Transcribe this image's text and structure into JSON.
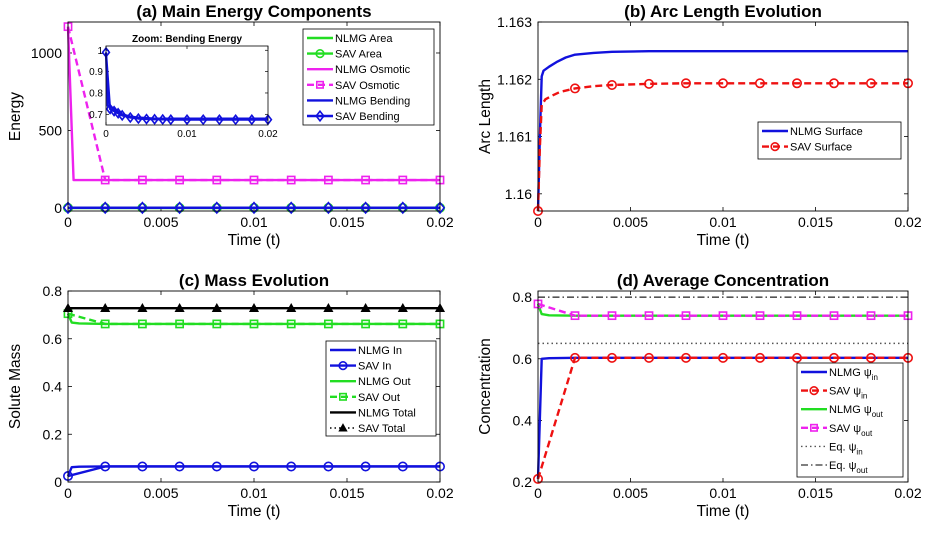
{
  "chart_data": [
    {
      "id": "a",
      "type": "line",
      "title": "(a) Main Energy Components",
      "xlabel": "Time (t)",
      "ylabel": "Energy",
      "xlim": [
        0,
        0.02
      ],
      "ylim": [
        -20,
        1200
      ],
      "xticks": [
        0,
        0.005,
        0.01,
        0.015,
        0.02
      ],
      "xtick_labels": [
        "0",
        "0.005",
        "0.01",
        "0.015",
        "0.02"
      ],
      "yticks": [
        0,
        500,
        1000
      ],
      "ytick_labels": [
        "0",
        "500",
        "1000"
      ],
      "legend_position": "top-right",
      "series": [
        {
          "name": "NLMG Area",
          "color": "#22dd22",
          "style": "solid",
          "x": [
            0,
            0.0002,
            0.02
          ],
          "y": [
            0,
            0,
            0
          ]
        },
        {
          "name": "SAV Area",
          "color": "#22dd22",
          "style": "solid",
          "marker": "circle",
          "x": [
            0,
            0.002,
            0.004,
            0.006,
            0.008,
            0.01,
            0.012,
            0.014,
            0.016,
            0.018,
            0.02
          ],
          "y": [
            0,
            0,
            0,
            0,
            0,
            0,
            0,
            0,
            0,
            0,
            0
          ]
        },
        {
          "name": "NLMG Osmotic",
          "color": "#ee22ee",
          "style": "solid",
          "x": [
            0,
            0.0003,
            0.02
          ],
          "y": [
            1170,
            180,
            180
          ]
        },
        {
          "name": "SAV Osmotic",
          "color": "#ee22ee",
          "style": "dashed",
          "marker": "square",
          "x": [
            0,
            0.002,
            0.004,
            0.006,
            0.008,
            0.01,
            0.012,
            0.014,
            0.016,
            0.018,
            0.02
          ],
          "y": [
            1170,
            180,
            180,
            180,
            180,
            180,
            180,
            180,
            180,
            180,
            180
          ]
        },
        {
          "name": "NLMG Bending",
          "color": "#1111dd",
          "style": "solid",
          "x": [
            0,
            0.02
          ],
          "y": [
            0.7,
            0.7
          ]
        },
        {
          "name": "SAV Bending",
          "color": "#1111dd",
          "style": "solid",
          "marker": "diamond",
          "x": [
            0,
            0.002,
            0.004,
            0.006,
            0.008,
            0.01,
            0.012,
            0.014,
            0.016,
            0.018,
            0.02
          ],
          "y": [
            0.7,
            0.7,
            0.7,
            0.7,
            0.7,
            0.7,
            0.7,
            0.7,
            0.7,
            0.7,
            0.7
          ]
        }
      ],
      "inset": {
        "title": "Zoom: Bending Energy",
        "xlim": [
          0,
          0.02
        ],
        "ylim": [
          0.65,
          1.02
        ],
        "xticks": [
          0,
          0.01,
          0.02
        ],
        "xtick_labels": [
          "0",
          "0.01",
          "0.02"
        ],
        "yticks": [
          0.7,
          0.8,
          0.9,
          1
        ],
        "ytick_labels": [
          "0.7",
          "0.8",
          "0.9",
          "1"
        ],
        "series": [
          {
            "name": "NLMG Bending",
            "color": "#1111dd",
            "x": [
              0,
              0.0002,
              0.0006,
              0.0012,
              0.002,
              0.003,
              0.004,
              0.006,
              0.01,
              0.02
            ],
            "y": [
              0.99,
              0.74,
              0.735,
              0.72,
              0.7,
              0.69,
              0.685,
              0.68,
              0.68,
              0.68
            ]
          },
          {
            "name": "SAV Bending",
            "color": "#1111dd",
            "marker": "diamond",
            "x": [
              0,
              0.0005,
              0.001,
              0.0015,
              0.002,
              0.003,
              0.004,
              0.005,
              0.006,
              0.007,
              0.008,
              0.01,
              0.012,
              0.014,
              0.016,
              0.018,
              0.02
            ],
            "y": [
              0.99,
              0.725,
              0.715,
              0.705,
              0.695,
              0.685,
              0.68,
              0.678,
              0.677,
              0.676,
              0.675,
              0.675,
              0.675,
              0.675,
              0.675,
              0.675,
              0.675
            ]
          }
        ]
      }
    },
    {
      "id": "b",
      "type": "line",
      "title": "(b) Arc Length Evolution",
      "xlabel": "Time (t)",
      "ylabel": "Arc Length",
      "xlim": [
        0,
        0.02
      ],
      "ylim": [
        1.1597,
        1.163
      ],
      "xticks": [
        0,
        0.005,
        0.01,
        0.015,
        0.02
      ],
      "xtick_labels": [
        "0",
        "0.005",
        "0.01",
        "0.015",
        "0.02"
      ],
      "yticks": [
        1.16,
        1.161,
        1.162,
        1.163
      ],
      "ytick_labels": [
        "1.16",
        "1.161",
        "1.162",
        "1.163"
      ],
      "legend_position": "center-right",
      "series": [
        {
          "name": "NLMG Surface",
          "color": "#1111dd",
          "style": "solid",
          "x": [
            0,
            0.0001,
            0.0002,
            0.0003,
            0.0006,
            0.001,
            0.0015,
            0.002,
            0.003,
            0.004,
            0.006,
            0.01,
            0.02
          ],
          "y": [
            1.1597,
            1.161,
            1.16205,
            1.16215,
            1.16222,
            1.1623,
            1.16238,
            1.16243,
            1.16246,
            1.16248,
            1.16249,
            1.16249,
            1.16249
          ]
        },
        {
          "name": "SAV Surface",
          "color": "#ee1111",
          "style": "dashed",
          "marker": "circle",
          "x": [
            0,
            0.0001,
            0.0002,
            0.0004,
            0.0008,
            0.0012,
            0.002,
            0.003,
            0.004,
            0.006,
            0.008,
            0.01,
            0.012,
            0.014,
            0.016,
            0.018,
            0.02
          ],
          "y": [
            1.1597,
            1.1608,
            1.16155,
            1.16165,
            1.16172,
            1.16178,
            1.16184,
            1.16188,
            1.1619,
            1.16192,
            1.16193,
            1.16193,
            1.16193,
            1.16193,
            1.16193,
            1.16193,
            1.16193
          ],
          "marker_x": [
            0,
            0.002,
            0.004,
            0.006,
            0.008,
            0.01,
            0.012,
            0.014,
            0.016,
            0.018,
            0.02
          ],
          "marker_y": [
            1.1597,
            1.16184,
            1.1619,
            1.16192,
            1.16193,
            1.16193,
            1.16193,
            1.16193,
            1.16193,
            1.16193,
            1.16193
          ]
        }
      ]
    },
    {
      "id": "c",
      "type": "line",
      "title": "(c) Mass Evolution",
      "xlabel": "Time (t)",
      "ylabel": "Solute Mass",
      "xlim": [
        0,
        0.02
      ],
      "ylim": [
        0,
        0.8
      ],
      "xticks": [
        0,
        0.005,
        0.01,
        0.015,
        0.02
      ],
      "xtick_labels": [
        "0",
        "0.005",
        "0.01",
        "0.015",
        "0.02"
      ],
      "yticks": [
        0,
        0.2,
        0.4,
        0.6,
        0.8
      ],
      "ytick_labels": [
        "0",
        "0.2",
        "0.4",
        "0.6",
        "0.8"
      ],
      "legend_position": "bottom-right",
      "series": [
        {
          "name": "NLMG In",
          "color": "#1111dd",
          "style": "solid",
          "x": [
            0,
            0.0002,
            0.0006,
            0.002,
            0.02
          ],
          "y": [
            0.025,
            0.062,
            0.064,
            0.065,
            0.065
          ]
        },
        {
          "name": "SAV In",
          "color": "#1111dd",
          "style": "solid",
          "marker": "circle",
          "x": [
            0,
            0.002,
            0.004,
            0.006,
            0.008,
            0.01,
            0.012,
            0.014,
            0.016,
            0.018,
            0.02
          ],
          "y": [
            0.025,
            0.065,
            0.065,
            0.065,
            0.065,
            0.065,
            0.065,
            0.065,
            0.065,
            0.065,
            0.065
          ]
        },
        {
          "name": "NLMG Out",
          "color": "#22dd22",
          "style": "solid",
          "x": [
            0,
            0.0002,
            0.0006,
            0.002,
            0.02
          ],
          "y": [
            0.705,
            0.668,
            0.664,
            0.662,
            0.662
          ]
        },
        {
          "name": "SAV Out",
          "color": "#22dd22",
          "style": "dashed",
          "marker": "square",
          "x": [
            0,
            0.002,
            0.004,
            0.006,
            0.008,
            0.01,
            0.012,
            0.014,
            0.016,
            0.018,
            0.02
          ],
          "y": [
            0.705,
            0.662,
            0.662,
            0.662,
            0.662,
            0.662,
            0.662,
            0.662,
            0.662,
            0.662,
            0.662
          ]
        },
        {
          "name": "NLMG Total",
          "color": "#000000",
          "style": "solid",
          "x": [
            0,
            0.02
          ],
          "y": [
            0.728,
            0.728
          ]
        },
        {
          "name": "SAV Total",
          "color": "#000000",
          "style": "dotted",
          "marker": "triangle",
          "x": [
            0,
            0.002,
            0.004,
            0.006,
            0.008,
            0.01,
            0.012,
            0.014,
            0.016,
            0.018,
            0.02
          ],
          "y": [
            0.728,
            0.728,
            0.728,
            0.728,
            0.728,
            0.728,
            0.728,
            0.728,
            0.728,
            0.728,
            0.728
          ]
        }
      ]
    },
    {
      "id": "d",
      "type": "line",
      "title": "(d) Average Concentration",
      "xlabel": "Time (t)",
      "ylabel": "Concentration",
      "xlim": [
        0,
        0.02
      ],
      "ylim": [
        0.2,
        0.82
      ],
      "xticks": [
        0,
        0.005,
        0.01,
        0.015,
        0.02
      ],
      "xtick_labels": [
        "0",
        "0.005",
        "0.01",
        "0.015",
        "0.02"
      ],
      "yticks": [
        0.2,
        0.4,
        0.6,
        0.8
      ],
      "ytick_labels": [
        "0.2",
        "0.4",
        "0.6",
        "0.8"
      ],
      "legend_position": "bottom-right",
      "series": [
        {
          "name": "NLMG ψ_in",
          "base": "NLMG ψ",
          "sub": "in",
          "color": "#1111dd",
          "style": "solid",
          "x": [
            0,
            0.0002,
            0.0006,
            0.002,
            0.02
          ],
          "y": [
            0.21,
            0.6,
            0.602,
            0.603,
            0.603
          ]
        },
        {
          "name": "SAV ψ_in",
          "base": "SAV ψ",
          "sub": "in",
          "color": "#ee1111",
          "style": "dashed",
          "marker": "circle",
          "x": [
            0,
            0.002,
            0.004,
            0.006,
            0.008,
            0.01,
            0.012,
            0.014,
            0.016,
            0.018,
            0.02
          ],
          "y": [
            0.21,
            0.603,
            0.603,
            0.603,
            0.603,
            0.603,
            0.603,
            0.603,
            0.603,
            0.603,
            0.603
          ]
        },
        {
          "name": "NLMG ψ_out",
          "base": "NLMG ψ",
          "sub": "out",
          "color": "#22dd22",
          "style": "solid",
          "x": [
            0,
            0.0002,
            0.0006,
            0.002,
            0.02
          ],
          "y": [
            0.778,
            0.745,
            0.741,
            0.74,
            0.74
          ]
        },
        {
          "name": "SAV ψ_out",
          "base": "SAV ψ",
          "sub": "out",
          "color": "#ee22ee",
          "style": "dashed",
          "marker": "square",
          "x": [
            0,
            0.002,
            0.004,
            0.006,
            0.008,
            0.01,
            0.012,
            0.014,
            0.016,
            0.018,
            0.02
          ],
          "y": [
            0.778,
            0.74,
            0.74,
            0.74,
            0.74,
            0.74,
            0.74,
            0.74,
            0.74,
            0.74,
            0.74
          ]
        },
        {
          "name": "Eq. ψ_in",
          "base": "Eq. ψ",
          "sub": "in",
          "color": "#555555",
          "style": "dotted",
          "x": [
            0,
            0.02
          ],
          "y": [
            0.65,
            0.65
          ]
        },
        {
          "name": "Eq. ψ_out",
          "base": "Eq. ψ",
          "sub": "out",
          "color": "#555555",
          "style": "dashdot",
          "x": [
            0,
            0.02
          ],
          "y": [
            0.8,
            0.8
          ]
        }
      ]
    }
  ]
}
